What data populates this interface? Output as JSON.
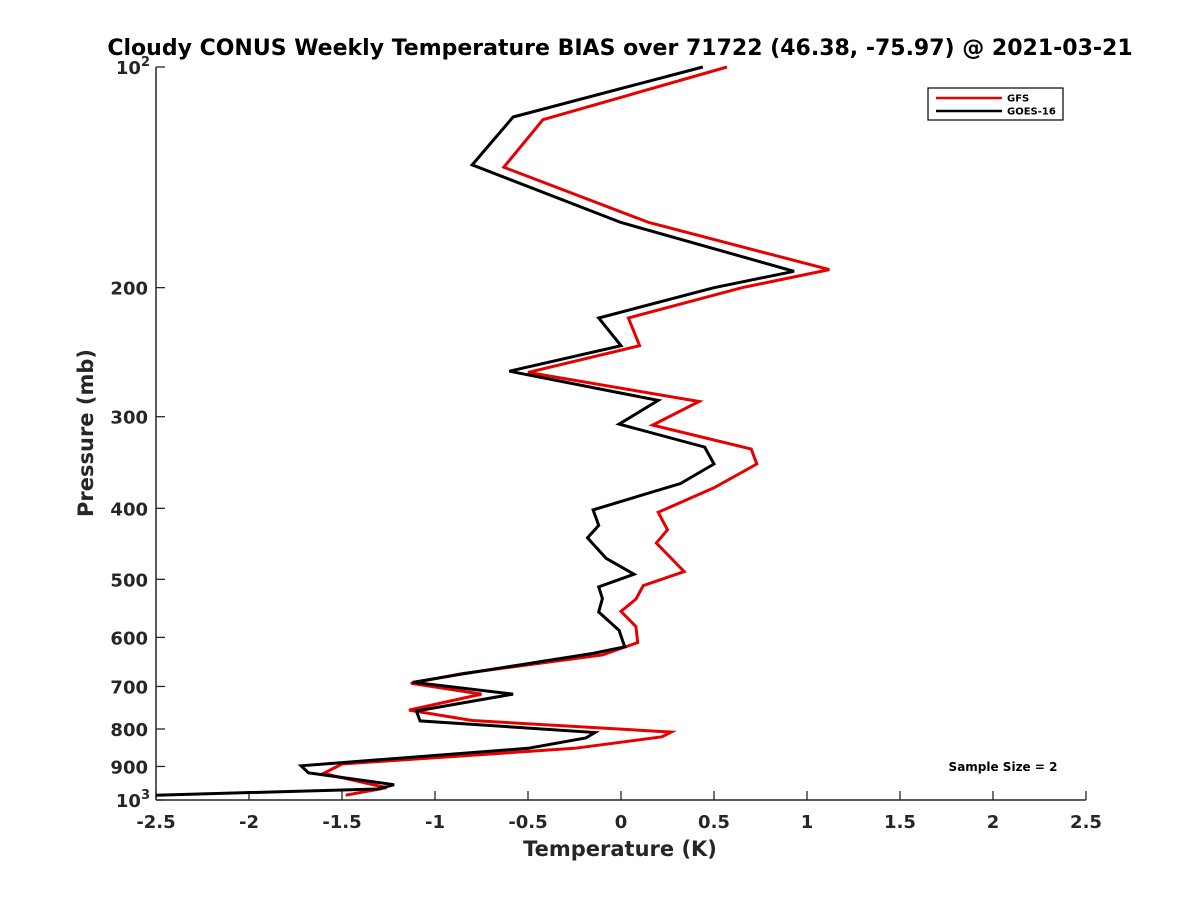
{
  "chart_data": {
    "type": "line",
    "title": "Cloudy CONUS Weekly Temperature BIAS over 71722 (46.38, -75.97) @ 2021-03-21",
    "xlabel": "Temperature (K)",
    "ylabel": "Pressure (mb)",
    "xlim": [
      -2.5,
      2.5
    ],
    "ylim": [
      100,
      1000
    ],
    "y_scale": "log",
    "y_reversed": true,
    "grid": false,
    "legend_position": "top-right",
    "x_ticks": [
      "-2.5",
      "-2",
      "-1.5",
      "-1",
      "-0.5",
      "0",
      "0.5",
      "1",
      "1.5",
      "2",
      "2.5"
    ],
    "x_tick_values": [
      -2.5,
      -2,
      -1.5,
      -1,
      -0.5,
      0,
      0.5,
      1,
      1.5,
      2,
      2.5
    ],
    "y_ticks": [
      {
        "value": 100,
        "label": "10",
        "sup": "2"
      },
      {
        "value": 200,
        "label": "200",
        "sup": ""
      },
      {
        "value": 300,
        "label": "300",
        "sup": ""
      },
      {
        "value": 400,
        "label": "400",
        "sup": ""
      },
      {
        "value": 500,
        "label": "500",
        "sup": ""
      },
      {
        "value": 600,
        "label": "600",
        "sup": ""
      },
      {
        "value": 700,
        "label": "700",
        "sup": ""
      },
      {
        "value": 800,
        "label": "800",
        "sup": ""
      },
      {
        "value": 900,
        "label": "900",
        "sup": ""
      },
      {
        "value": 1000,
        "label": "10",
        "sup": "3"
      }
    ],
    "series": [
      {
        "name": "GFS",
        "color": "#e60000",
        "points": [
          [
            0.57,
            100
          ],
          [
            -0.42,
            118
          ],
          [
            -0.63,
            137
          ],
          [
            0.15,
            163
          ],
          [
            1.12,
            189
          ],
          [
            0.65,
            200
          ],
          [
            0.04,
            220
          ],
          [
            0.1,
            240
          ],
          [
            -0.5,
            261
          ],
          [
            0.42,
            286
          ],
          [
            0.17,
            308
          ],
          [
            0.7,
            332
          ],
          [
            0.73,
            348
          ],
          [
            0.5,
            375
          ],
          [
            0.2,
            405
          ],
          [
            0.25,
            428
          ],
          [
            0.19,
            446
          ],
          [
            0.34,
            488
          ],
          [
            0.12,
            510
          ],
          [
            0.08,
            532
          ],
          [
            0.0,
            553
          ],
          [
            0.08,
            580
          ],
          [
            0.09,
            610
          ],
          [
            -0.1,
            634
          ],
          [
            -0.85,
            672
          ],
          [
            -1.13,
            693
          ],
          [
            -0.75,
            717
          ],
          [
            -1.14,
            754
          ],
          [
            -0.8,
            779
          ],
          [
            0.27,
            808
          ],
          [
            0.22,
            820
          ],
          [
            -0.25,
            850
          ],
          [
            -1.5,
            893
          ],
          [
            -1.6,
            920
          ],
          [
            -1.26,
            962
          ],
          [
            -1.48,
            985
          ]
        ]
      },
      {
        "name": "GOES-16",
        "color": "#000000",
        "points": [
          [
            0.44,
            100
          ],
          [
            -0.58,
            117
          ],
          [
            -0.8,
            136
          ],
          [
            0.0,
            163
          ],
          [
            0.93,
            190
          ],
          [
            0.5,
            200
          ],
          [
            -0.12,
            220
          ],
          [
            0.0,
            240
          ],
          [
            -0.6,
            260
          ],
          [
            0.2,
            285
          ],
          [
            -0.01,
            307
          ],
          [
            0.45,
            330
          ],
          [
            0.5,
            348
          ],
          [
            0.32,
            370
          ],
          [
            -0.15,
            402
          ],
          [
            -0.12,
            422
          ],
          [
            -0.18,
            439
          ],
          [
            -0.08,
            468
          ],
          [
            0.07,
            492
          ],
          [
            -0.12,
            512
          ],
          [
            -0.1,
            531
          ],
          [
            -0.12,
            554
          ],
          [
            -0.01,
            587
          ],
          [
            0.02,
            618
          ],
          [
            -0.15,
            631
          ],
          [
            -0.85,
            673
          ],
          [
            -1.12,
            691
          ],
          [
            -0.58,
            717
          ],
          [
            -1.1,
            756
          ],
          [
            -1.08,
            780
          ],
          [
            -0.14,
            809
          ],
          [
            -0.19,
            823
          ],
          [
            -0.5,
            850
          ],
          [
            -1.72,
            898
          ],
          [
            -1.68,
            918
          ],
          [
            -1.22,
            953
          ],
          [
            -1.31,
            966
          ],
          [
            -2.5,
            985
          ]
        ]
      }
    ],
    "annotation": "Sample Size = 2"
  }
}
